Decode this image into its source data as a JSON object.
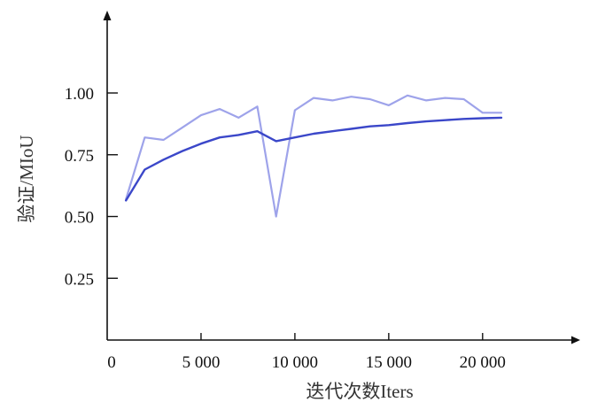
{
  "chart_data": {
    "type": "line",
    "title": "",
    "xlabel": "迭代次数Iters",
    "ylabel": "验证/MIoU",
    "xlim": [
      0,
      25000
    ],
    "ylim": [
      0,
      1.25
    ],
    "grid": false,
    "legend": "none",
    "xticks": [
      {
        "value": 0,
        "label": "0"
      },
      {
        "value": 5000,
        "label": "5 000"
      },
      {
        "value": 10000,
        "label": "10 000"
      },
      {
        "value": 15000,
        "label": "15 000"
      },
      {
        "value": 20000,
        "label": "20 000"
      }
    ],
    "yticks": [
      {
        "value": 0.25,
        "label": "0.25"
      },
      {
        "value": 0.5,
        "label": "0.50"
      },
      {
        "value": 0.75,
        "label": "0.75"
      },
      {
        "value": 1.0,
        "label": "1.00"
      }
    ],
    "series": [
      {
        "name": "",
        "color": "#9ea3ea",
        "x": [
          1000,
          2000,
          3000,
          4000,
          5000,
          6000,
          7000,
          8000,
          9000,
          10000,
          11000,
          12000,
          13000,
          14000,
          15000,
          16000,
          17000,
          18000,
          19000,
          20000,
          21000
        ],
        "y": [
          0.57,
          0.82,
          0.81,
          0.86,
          0.91,
          0.935,
          0.9,
          0.945,
          0.5,
          0.93,
          0.98,
          0.97,
          0.985,
          0.975,
          0.95,
          0.99,
          0.97,
          0.98,
          0.975,
          0.92,
          0.92
        ]
      },
      {
        "name": "",
        "color": "#3b47c9",
        "x": [
          1000,
          2000,
          3000,
          4000,
          5000,
          6000,
          7000,
          8000,
          9000,
          10000,
          11000,
          12000,
          13000,
          14000,
          15000,
          16000,
          17000,
          18000,
          19000,
          20000,
          21000
        ],
        "y": [
          0.565,
          0.69,
          0.73,
          0.765,
          0.795,
          0.82,
          0.83,
          0.845,
          0.805,
          0.82,
          0.835,
          0.845,
          0.855,
          0.865,
          0.87,
          0.878,
          0.885,
          0.89,
          0.895,
          0.898,
          0.9
        ]
      }
    ]
  }
}
